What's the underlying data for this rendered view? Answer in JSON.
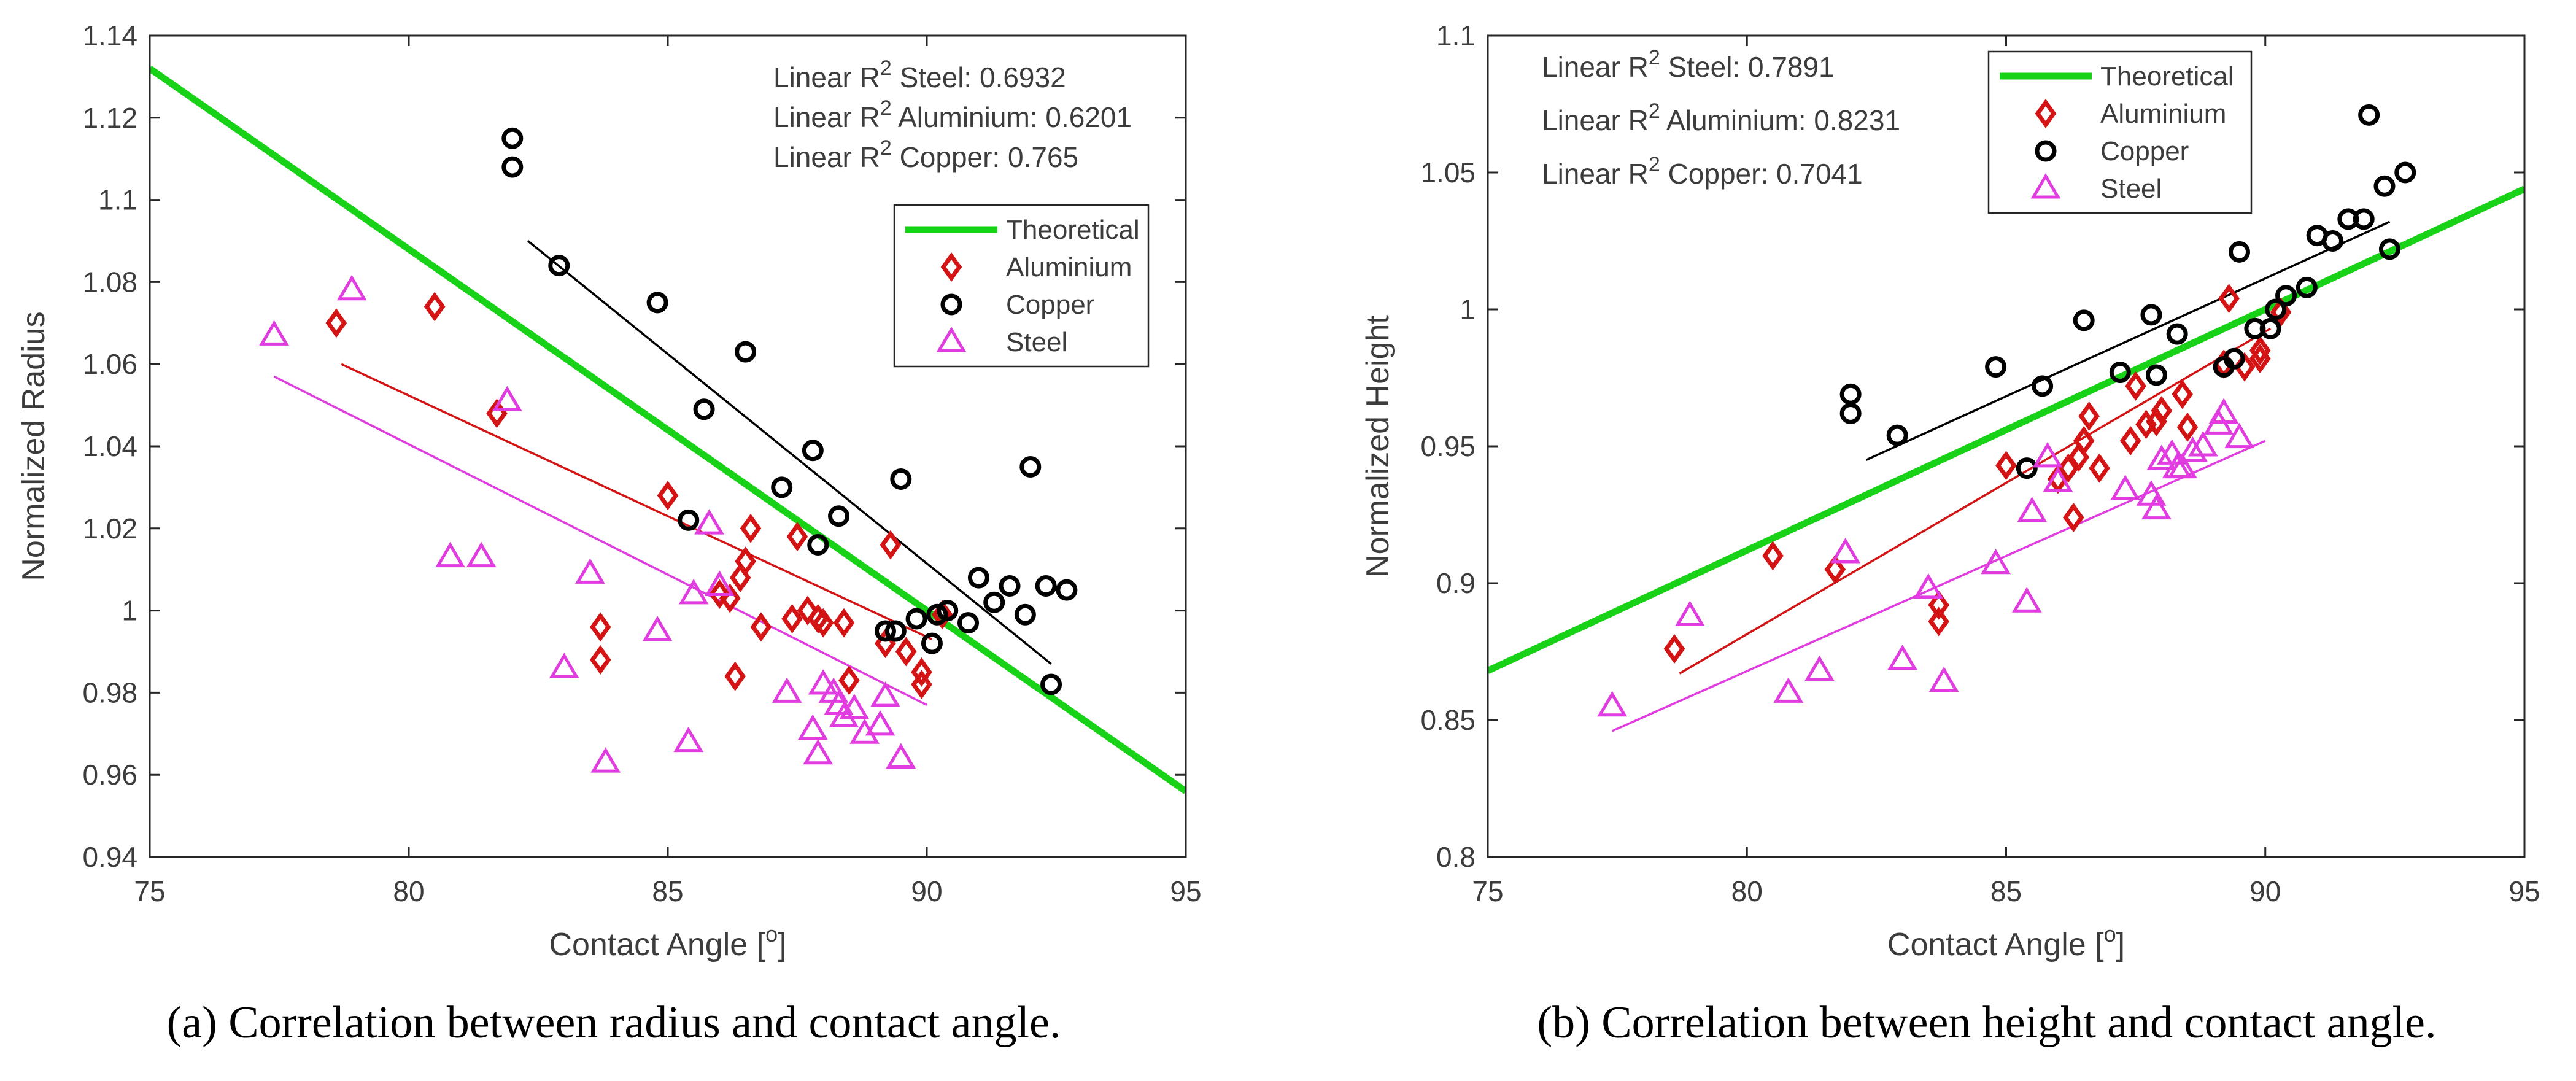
{
  "chart_data": [
    {
      "id": "a",
      "type": "scatter",
      "xlabel_text": "Contact Angle [",
      "xlabel_sup": "o",
      "xlabel_close": "]",
      "ylabel": "Normalized Radius",
      "xlim": [
        75,
        95
      ],
      "ylim": [
        0.94,
        1.14
      ],
      "xticks": [
        75,
        80,
        85,
        90,
        95
      ],
      "yticks": [
        0.94,
        0.96,
        0.98,
        1,
        1.02,
        1.04,
        1.06,
        1.08,
        1.1,
        1.12,
        1.14
      ],
      "ytick_labels": [
        "0.94",
        "0.96",
        "0.98",
        "1",
        "1.02",
        "1.04",
        "1.06",
        "1.08",
        "1.1",
        "1.12",
        "1.14"
      ],
      "caption": "(a) Correlation between radius and contact angle.",
      "legend": {
        "position": "upper-right",
        "entries": [
          "Theoretical",
          "Aluminium",
          "Copper",
          "Steel"
        ]
      },
      "annotations": [
        {
          "pre": "Linear R",
          "sup": "2",
          "post": " Steel: 0.6932"
        },
        {
          "pre": "Linear R",
          "sup": "2",
          "post": " Aluminium: 0.6201"
        },
        {
          "pre": "Linear R",
          "sup": "2",
          "post": " Copper: 0.765"
        }
      ],
      "theoretical": {
        "name": "Theoretical",
        "x": [
          75,
          95
        ],
        "y": [
          1.132,
          0.956
        ]
      },
      "series": [
        {
          "name": "Aluminium",
          "marker": "diamond",
          "fit": {
            "x": [
              78.7,
              90.1
            ],
            "y": [
              1.06,
              0.993
            ]
          },
          "points": [
            [
              78.6,
              1.07
            ],
            [
              80.5,
              1.074
            ],
            [
              81.7,
              1.048
            ],
            [
              83.7,
              0.996
            ],
            [
              83.7,
              0.988
            ],
            [
              85.0,
              1.028
            ],
            [
              86.0,
              1.004
            ],
            [
              86.2,
              1.003
            ],
            [
              86.3,
              0.984
            ],
            [
              86.4,
              1.008
            ],
            [
              86.5,
              1.012
            ],
            [
              86.6,
              1.02
            ],
            [
              86.8,
              0.996
            ],
            [
              87.4,
              0.998
            ],
            [
              87.5,
              1.018
            ],
            [
              87.7,
              1.0
            ],
            [
              87.9,
              0.998
            ],
            [
              88.0,
              0.997
            ],
            [
              88.4,
              0.997
            ],
            [
              88.5,
              0.983
            ],
            [
              89.2,
              0.992
            ],
            [
              89.3,
              1.016
            ],
            [
              89.6,
              0.99
            ],
            [
              89.9,
              0.985
            ],
            [
              89.9,
              0.982
            ],
            [
              90.3,
              0.999
            ]
          ]
        },
        {
          "name": "Copper",
          "marker": "circle",
          "fit": {
            "x": [
              82.3,
              92.4
            ],
            "y": [
              1.09,
              0.987
            ]
          },
          "points": [
            [
              82.0,
              1.115
            ],
            [
              82.0,
              1.108
            ],
            [
              82.9,
              1.084
            ],
            [
              84.8,
              1.075
            ],
            [
              85.7,
              1.049
            ],
            [
              86.5,
              1.063
            ],
            [
              85.4,
              1.022
            ],
            [
              87.2,
              1.03
            ],
            [
              87.8,
              1.039
            ],
            [
              87.9,
              1.016
            ],
            [
              88.3,
              1.023
            ],
            [
              89.5,
              1.032
            ],
            [
              89.2,
              0.995
            ],
            [
              89.4,
              0.995
            ],
            [
              89.8,
              0.998
            ],
            [
              90.1,
              0.992
            ],
            [
              90.2,
              0.999
            ],
            [
              90.4,
              1.0
            ],
            [
              90.8,
              0.997
            ],
            [
              91.0,
              1.008
            ],
            [
              91.3,
              1.002
            ],
            [
              91.6,
              1.006
            ],
            [
              91.9,
              0.999
            ],
            [
              92.0,
              1.035
            ],
            [
              92.3,
              1.006
            ],
            [
              92.7,
              1.005
            ],
            [
              92.4,
              0.982
            ]
          ]
        },
        {
          "name": "Steel",
          "marker": "triangle",
          "fit": {
            "x": [
              77.4,
              90.0
            ],
            "y": [
              1.057,
              0.977
            ]
          },
          "points": [
            [
              77.4,
              1.067
            ],
            [
              78.9,
              1.078
            ],
            [
              80.8,
              1.013
            ],
            [
              81.4,
              1.013
            ],
            [
              81.9,
              1.051
            ],
            [
              83.0,
              0.986
            ],
            [
              83.5,
              1.009
            ],
            [
              83.8,
              0.963
            ],
            [
              84.8,
              0.995
            ],
            [
              85.5,
              1.004
            ],
            [
              85.4,
              0.968
            ],
            [
              85.8,
              1.021
            ],
            [
              86.0,
              1.006
            ],
            [
              87.3,
              0.98
            ],
            [
              87.8,
              0.971
            ],
            [
              87.9,
              0.965
            ],
            [
              88.0,
              0.982
            ],
            [
              88.2,
              0.98
            ],
            [
              88.3,
              0.977
            ],
            [
              88.4,
              0.974
            ],
            [
              88.6,
              0.976
            ],
            [
              88.8,
              0.97
            ],
            [
              89.1,
              0.972
            ],
            [
              89.2,
              0.979
            ],
            [
              89.5,
              0.964
            ]
          ]
        }
      ]
    },
    {
      "id": "b",
      "type": "scatter",
      "xlabel_text": "Contact Angle [",
      "xlabel_sup": "o",
      "xlabel_close": "]",
      "ylabel": "Normalized Height",
      "xlim": [
        75,
        95
      ],
      "ylim": [
        0.8,
        1.1
      ],
      "xticks": [
        75,
        80,
        85,
        90,
        95
      ],
      "yticks": [
        0.8,
        0.85,
        0.9,
        0.95,
        1,
        1.05,
        1.1
      ],
      "ytick_labels": [
        "0.8",
        "0.85",
        "0.9",
        "0.95",
        "1",
        "1.05",
        "1.1"
      ],
      "caption": "(b) Correlation between height and contact angle.",
      "legend": {
        "position": "upper-center",
        "entries": [
          "Theoretical",
          "Aluminium",
          "Copper",
          "Steel"
        ]
      },
      "annotations": [
        {
          "pre": "Linear R",
          "sup": "2",
          "post": " Steel: 0.7891"
        },
        {
          "pre": "Linear R",
          "sup": "2",
          "post": " Aluminium: 0.8231"
        },
        {
          "pre": "Linear R",
          "sup": "2",
          "post": " Copper: 0.7041"
        }
      ],
      "theoretical": {
        "name": "Theoretical",
        "x": [
          75,
          95
        ],
        "y": [
          0.868,
          1.044
        ]
      },
      "series": [
        {
          "name": "Aluminium",
          "marker": "diamond",
          "fit": {
            "x": [
              78.7,
              90.1
            ],
            "y": [
              0.867,
              0.993
            ]
          },
          "points": [
            [
              78.6,
              0.876
            ],
            [
              80.5,
              0.91
            ],
            [
              81.7,
              0.905
            ],
            [
              83.7,
              0.892
            ],
            [
              83.7,
              0.886
            ],
            [
              85.0,
              0.943
            ],
            [
              86.0,
              0.938
            ],
            [
              86.2,
              0.942
            ],
            [
              86.3,
              0.924
            ],
            [
              86.4,
              0.946
            ],
            [
              86.5,
              0.952
            ],
            [
              86.6,
              0.961
            ],
            [
              86.8,
              0.942
            ],
            [
              87.4,
              0.952
            ],
            [
              87.5,
              0.972
            ],
            [
              87.7,
              0.958
            ],
            [
              87.9,
              0.959
            ],
            [
              88.0,
              0.963
            ],
            [
              88.4,
              0.969
            ],
            [
              88.5,
              0.957
            ],
            [
              89.2,
              0.98
            ],
            [
              89.3,
              1.004
            ],
            [
              89.6,
              0.979
            ],
            [
              89.9,
              0.982
            ],
            [
              89.9,
              0.985
            ],
            [
              90.3,
              0.999
            ]
          ]
        },
        {
          "name": "Copper",
          "marker": "circle",
          "fit": {
            "x": [
              82.3,
              92.4
            ],
            "y": [
              0.945,
              1.032
            ]
          },
          "points": [
            [
              82.0,
              0.969
            ],
            [
              82.0,
              0.962
            ],
            [
              82.9,
              0.954
            ],
            [
              84.8,
              0.979
            ],
            [
              85.7,
              0.972
            ],
            [
              86.5,
              0.996
            ],
            [
              85.4,
              0.942
            ],
            [
              87.2,
              0.977
            ],
            [
              87.8,
              0.998
            ],
            [
              87.9,
              0.976
            ],
            [
              88.3,
              0.991
            ],
            [
              89.5,
              1.021
            ],
            [
              89.2,
              0.979
            ],
            [
              89.4,
              0.982
            ],
            [
              89.8,
              0.993
            ],
            [
              90.1,
              0.993
            ],
            [
              90.2,
              1.0
            ],
            [
              90.4,
              1.005
            ],
            [
              90.8,
              1.008
            ],
            [
              91.0,
              1.027
            ],
            [
              91.3,
              1.025
            ],
            [
              91.6,
              1.033
            ],
            [
              91.9,
              1.033
            ],
            [
              92.0,
              1.071
            ],
            [
              92.3,
              1.045
            ],
            [
              92.7,
              1.05
            ],
            [
              92.4,
              1.022
            ]
          ]
        },
        {
          "name": "Steel",
          "marker": "triangle",
          "fit": {
            "x": [
              77.4,
              90.0
            ],
            "y": [
              0.846,
              0.952
            ]
          },
          "points": [
            [
              77.4,
              0.855
            ],
            [
              78.9,
              0.888
            ],
            [
              80.8,
              0.86
            ],
            [
              81.4,
              0.868
            ],
            [
              81.9,
              0.911
            ],
            [
              83.0,
              0.872
            ],
            [
              83.5,
              0.898
            ],
            [
              83.8,
              0.864
            ],
            [
              84.8,
              0.907
            ],
            [
              85.5,
              0.926
            ],
            [
              85.4,
              0.893
            ],
            [
              85.8,
              0.946
            ],
            [
              86.0,
              0.937
            ],
            [
              87.3,
              0.934
            ],
            [
              87.8,
              0.932
            ],
            [
              87.9,
              0.927
            ],
            [
              88.0,
              0.945
            ],
            [
              88.2,
              0.947
            ],
            [
              88.3,
              0.942
            ],
            [
              88.4,
              0.942
            ],
            [
              88.6,
              0.948
            ],
            [
              88.8,
              0.95
            ],
            [
              89.1,
              0.958
            ],
            [
              89.2,
              0.962
            ],
            [
              89.5,
              0.953
            ]
          ]
        }
      ]
    }
  ],
  "colors": {
    "Theoretical": "#17d217",
    "Aluminium": "#d41414",
    "Copper": "#000000",
    "Steel": "#e03ce0",
    "axis": "#262626",
    "text": "#3c3c3c",
    "caption": "#000000"
  }
}
